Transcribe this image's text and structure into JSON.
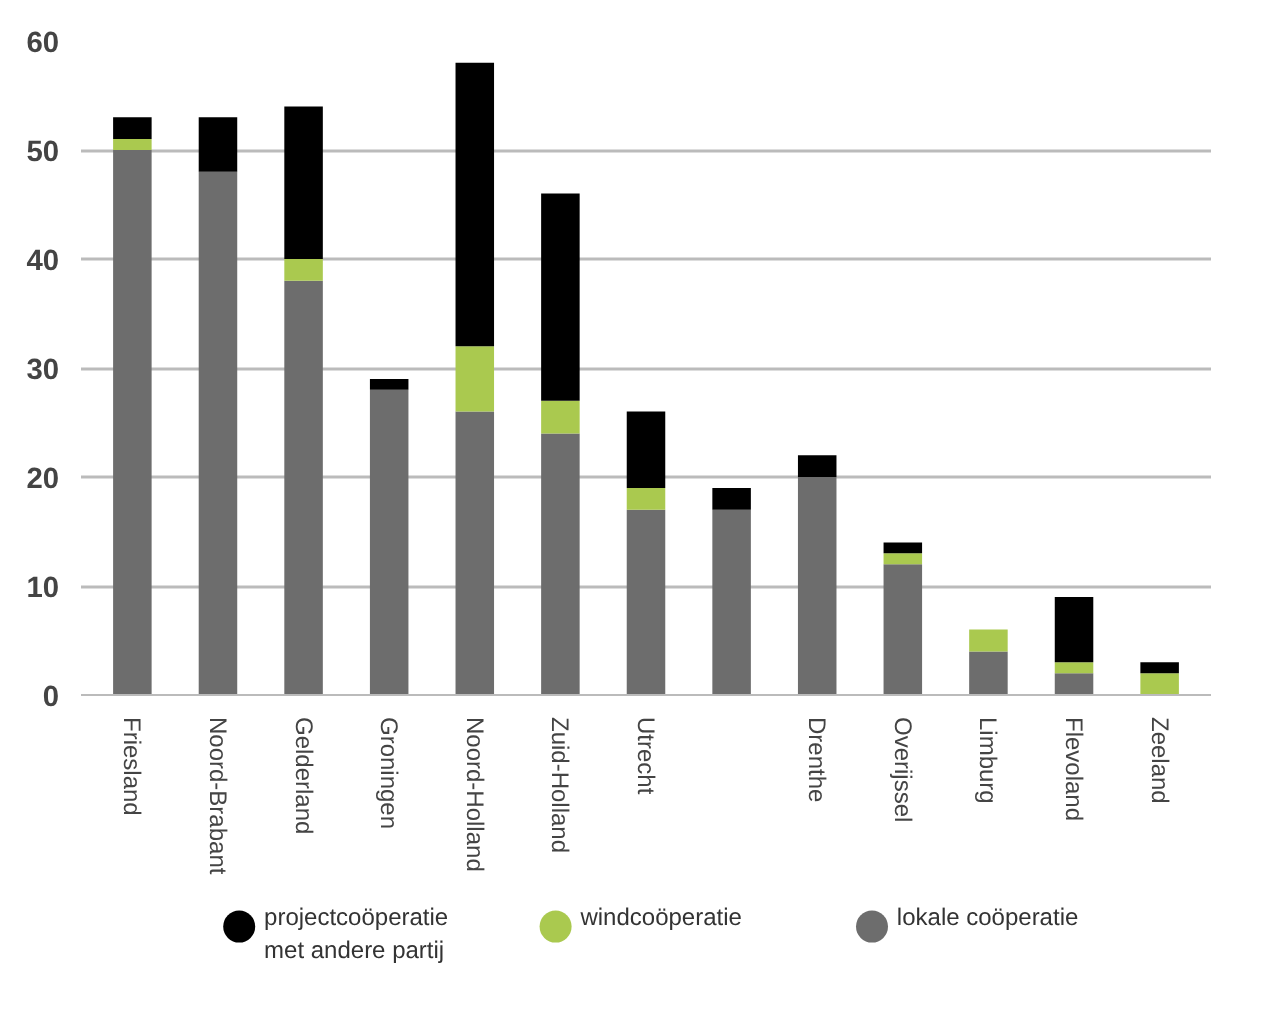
{
  "chart_data": {
    "type": "bar",
    "stacked": true,
    "categories": [
      "Friesland",
      "Noord-Brabant",
      "Gelderland",
      "Groningen",
      "Noord-Holland",
      "Zuid-Holland",
      "Utrecht",
      null,
      "Drenthe",
      "Overijssel",
      "Limburg",
      "Flevoland",
      "Zeeland"
    ],
    "series": [
      {
        "name": "lokale coöperatie",
        "color": "#6d6d6d",
        "values": [
          50,
          48,
          38,
          28,
          26,
          24,
          17,
          17,
          20,
          12,
          4,
          2,
          0
        ]
      },
      {
        "name": "windcoöperatie",
        "color": "#aac94f",
        "values": [
          1,
          0,
          2,
          0,
          6,
          3,
          2,
          0,
          0,
          1,
          2,
          1,
          2
        ]
      },
      {
        "name": "projectcoöperatie met andere partij",
        "color": "#000000",
        "values": [
          2,
          5,
          14,
          1,
          26,
          19,
          7,
          2,
          2,
          1,
          0,
          6,
          1
        ]
      }
    ],
    "ylim": [
      0,
      60
    ],
    "yticks": [
      0,
      10,
      20,
      30,
      40,
      50,
      60
    ],
    "grid": "y",
    "legend": "bottom"
  }
}
